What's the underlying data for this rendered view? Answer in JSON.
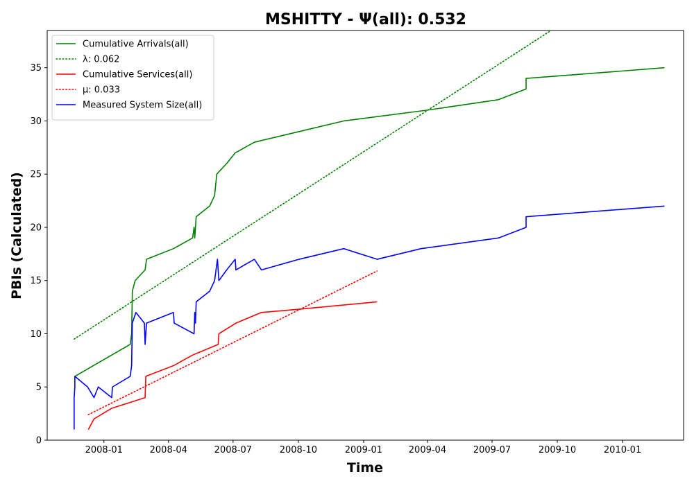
{
  "chart_data": {
    "type": "line",
    "title": "MSHITTY -  Ψ(all): 0.532",
    "xlabel": "Time",
    "ylabel": "PBIs (Calculated)",
    "xlim": [
      "2007-10-13",
      "2010-03-28"
    ],
    "ylim": [
      0,
      38.5
    ],
    "grid": false,
    "legend_position": "top-left",
    "x_ticks": [
      {
        "value": "2008-01-01",
        "label": "2008-01"
      },
      {
        "value": "2008-04-01",
        "label": "2008-04"
      },
      {
        "value": "2008-07-01",
        "label": "2008-07"
      },
      {
        "value": "2008-10-01",
        "label": "2008-10"
      },
      {
        "value": "2009-01-01",
        "label": "2009-01"
      },
      {
        "value": "2009-04-01",
        "label": "2009-04"
      },
      {
        "value": "2009-07-01",
        "label": "2009-07"
      },
      {
        "value": "2009-10-01",
        "label": "2009-10"
      },
      {
        "value": "2010-01-01",
        "label": "2010-01"
      }
    ],
    "y_ticks": [
      0,
      5,
      10,
      15,
      20,
      25,
      30,
      35
    ],
    "series": [
      {
        "name": "Cumulative Arrivals(all)",
        "color": "#008000",
        "style": "solid",
        "points": [
          [
            "2007-11-21",
            6
          ],
          [
            "2008-01-12",
            8
          ],
          [
            "2008-02-07",
            9
          ],
          [
            "2008-02-09",
            10
          ],
          [
            "2008-02-10",
            14
          ],
          [
            "2008-02-14",
            15
          ],
          [
            "2008-02-28",
            16
          ],
          [
            "2008-03-01",
            17
          ],
          [
            "2008-04-08",
            18
          ],
          [
            "2008-05-05",
            19
          ],
          [
            "2008-05-07",
            20
          ],
          [
            "2008-05-08",
            19
          ],
          [
            "2008-05-10",
            21
          ],
          [
            "2008-05-29",
            22
          ],
          [
            "2008-06-05",
            23
          ],
          [
            "2008-06-08",
            25
          ],
          [
            "2008-06-22",
            26
          ],
          [
            "2008-07-04",
            27
          ],
          [
            "2008-07-31",
            28
          ],
          [
            "2008-10-02",
            29
          ],
          [
            "2008-12-04",
            30
          ],
          [
            "2009-03-30",
            31
          ],
          [
            "2009-07-10",
            32
          ],
          [
            "2009-08-18",
            33
          ],
          [
            "2009-08-18",
            34
          ],
          [
            "2010-03-01",
            35
          ]
        ]
      },
      {
        "name": "λ: 0.062",
        "color": "#008000",
        "style": "dotted",
        "points": [
          [
            "2007-11-20",
            9.5
          ],
          [
            "2009-09-22",
            38.5
          ]
        ]
      },
      {
        "name": "Cumulative Services(all)",
        "color": "#ff0000",
        "style": "solid",
        "points": [
          [
            "2007-12-10",
            1
          ],
          [
            "2007-12-18",
            2
          ],
          [
            "2008-01-12",
            3
          ],
          [
            "2008-02-28",
            4
          ],
          [
            "2008-02-29",
            6
          ],
          [
            "2008-04-08",
            7
          ],
          [
            "2008-05-05",
            8
          ],
          [
            "2008-06-10",
            9
          ],
          [
            "2008-06-11",
            10
          ],
          [
            "2008-07-05",
            11
          ],
          [
            "2008-08-10",
            12
          ],
          [
            "2008-10-01",
            12.3
          ],
          [
            "2009-01-20",
            13
          ]
        ]
      },
      {
        "name": "μ: 0.033",
        "color": "#ff0000",
        "style": "dotted",
        "points": [
          [
            "2007-12-10",
            2.4
          ],
          [
            "2009-01-20",
            15.9
          ]
        ]
      },
      {
        "name": "Measured System Size(all)",
        "color": "#0000ff",
        "style": "solid",
        "points": [
          [
            "2007-11-20",
            1
          ],
          [
            "2007-11-20",
            4
          ],
          [
            "2007-11-21",
            5
          ],
          [
            "2007-11-21",
            6
          ],
          [
            "2007-12-09",
            5
          ],
          [
            "2007-12-18",
            4
          ],
          [
            "2007-12-24",
            5
          ],
          [
            "2008-01-12",
            4
          ],
          [
            "2008-01-13",
            5
          ],
          [
            "2008-02-07",
            6
          ],
          [
            "2008-02-09",
            7
          ],
          [
            "2008-02-10",
            11
          ],
          [
            "2008-02-15",
            12
          ],
          [
            "2008-02-27",
            11
          ],
          [
            "2008-02-28",
            9
          ],
          [
            "2008-03-01",
            11
          ],
          [
            "2008-04-08",
            12
          ],
          [
            "2008-04-09",
            11
          ],
          [
            "2008-05-07",
            10
          ],
          [
            "2008-05-08",
            12
          ],
          [
            "2008-05-09",
            11
          ],
          [
            "2008-05-10",
            13
          ],
          [
            "2008-05-29",
            14
          ],
          [
            "2008-06-05",
            15
          ],
          [
            "2008-06-09",
            17
          ],
          [
            "2008-06-11",
            15
          ],
          [
            "2008-06-22",
            16
          ],
          [
            "2008-07-04",
            17
          ],
          [
            "2008-07-05",
            16
          ],
          [
            "2008-07-31",
            17
          ],
          [
            "2008-08-10",
            16
          ],
          [
            "2008-10-02",
            17
          ],
          [
            "2008-12-04",
            18
          ],
          [
            "2009-01-20",
            17
          ],
          [
            "2009-03-23",
            18
          ],
          [
            "2009-07-10",
            19
          ],
          [
            "2009-08-18",
            20
          ],
          [
            "2009-08-18",
            21
          ],
          [
            "2010-03-01",
            22
          ]
        ]
      }
    ]
  }
}
